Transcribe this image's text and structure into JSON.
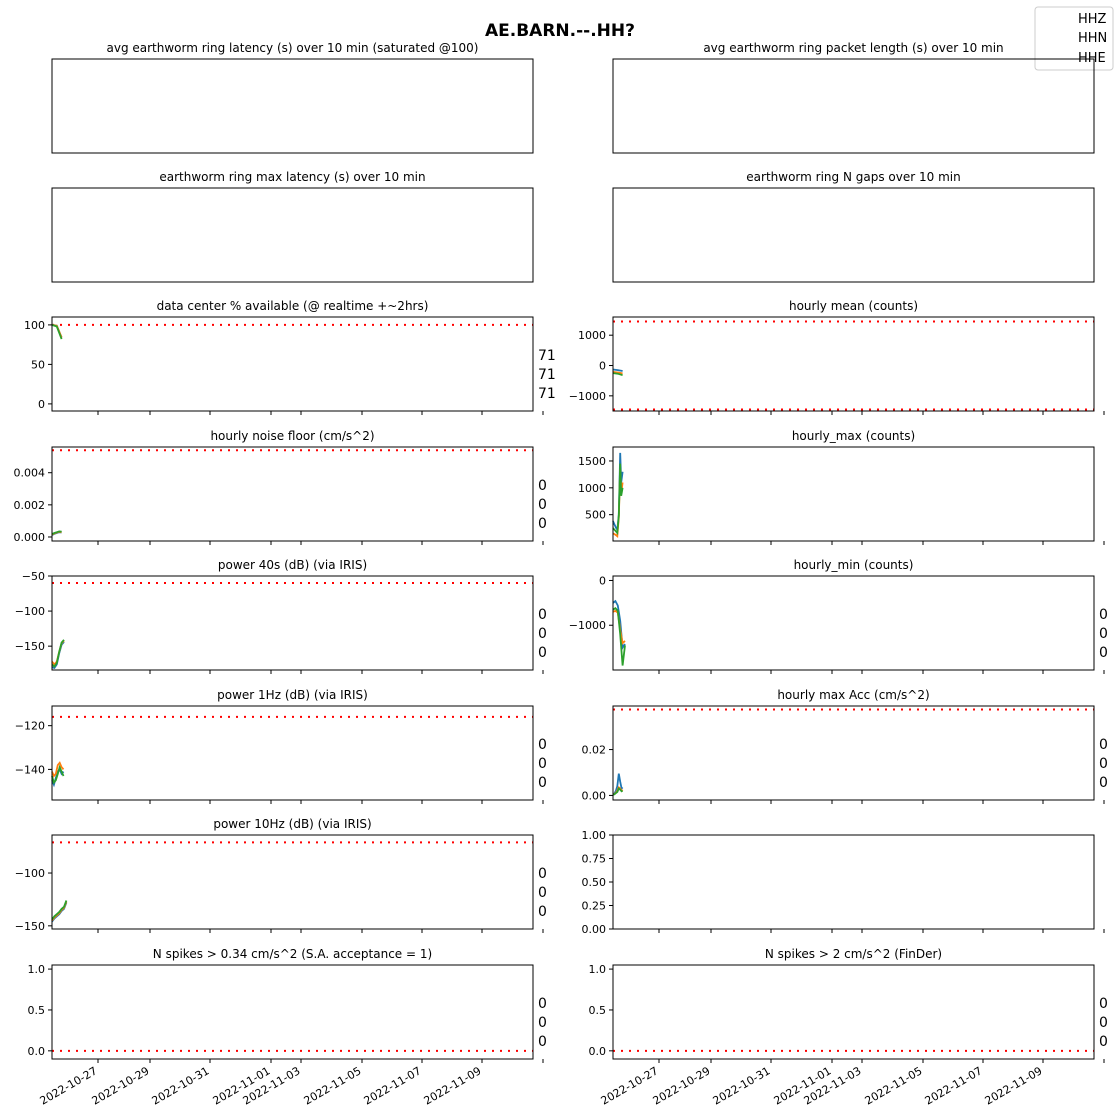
{
  "figure": {
    "title": "AE.BARN.--.HH?",
    "legend": [
      "HHZ",
      "HHN",
      "HHE"
    ],
    "colors": {
      "HHZ": "#1f77b4",
      "HHN": "#ff7f0e",
      "HHE": "#2ca02c",
      "threshold": "#ff0000"
    }
  },
  "chart_data": [
    {
      "id": "avg-latency",
      "type": "line",
      "title": "avg earthworm ring latency (s)   over 10 min (saturated @100)",
      "empty": true,
      "ticks": [],
      "badges": []
    },
    {
      "id": "avg-packet-length",
      "type": "line",
      "title": "avg earthworm ring packet length (s)   over 10 min",
      "empty": true,
      "ticks": [],
      "badges": []
    },
    {
      "id": "max-latency",
      "type": "line",
      "title": "earthworm ring max latency (s)   over 10 min",
      "empty": true,
      "ticks": [],
      "badges": []
    },
    {
      "id": "n-gaps",
      "type": "line",
      "title": "earthworm ring N gaps   over 10 min",
      "empty": true,
      "ticks": [],
      "badges": []
    },
    {
      "id": "data-available",
      "type": "line",
      "title": "data center % available (@ realtime +~2hrs)",
      "ylim": [
        -9,
        110
      ],
      "ticks": [
        {
          "v": 100,
          "l": "100"
        },
        {
          "v": 50,
          "l": "50"
        },
        {
          "v": 0,
          "l": "0"
        }
      ],
      "threshold": [
        100
      ],
      "series": [
        {
          "name": "HHZ",
          "x": [
            0,
            0.1,
            0.2
          ],
          "y": [
            100,
            99,
            84
          ]
        },
        {
          "name": "HHN",
          "x": [
            0,
            0.1,
            0.2
          ],
          "y": [
            100,
            99,
            84
          ]
        },
        {
          "name": "HHE",
          "x": [
            0,
            0.1,
            0.2
          ],
          "y": [
            100,
            98,
            82
          ]
        }
      ],
      "badges": [
        "71",
        "71",
        "71"
      ]
    },
    {
      "id": "hourly-mean",
      "type": "line",
      "title": "hourly mean (counts)",
      "ylim": [
        -1500,
        1600
      ],
      "ticks": [
        {
          "v": 1000,
          "l": "1000"
        },
        {
          "v": 0,
          "l": "0"
        },
        {
          "v": -1000,
          "l": "−1000"
        }
      ],
      "threshold": [
        1450,
        -1450
      ],
      "series": [
        {
          "name": "HHZ",
          "x": [
            0,
            0.1,
            0.2
          ],
          "y": [
            -130,
            -150,
            -180
          ]
        },
        {
          "name": "HHN",
          "x": [
            0,
            0.1,
            0.2
          ],
          "y": [
            -210,
            -230,
            -260
          ]
        },
        {
          "name": "HHE",
          "x": [
            0,
            0.1,
            0.2
          ],
          "y": [
            -250,
            -270,
            -320
          ]
        }
      ],
      "badges": []
    },
    {
      "id": "noise-floor",
      "type": "line",
      "title": "hourly noise floor (cm/s^2)",
      "ylim": [
        -0.00025,
        0.0056
      ],
      "ticks": [
        {
          "v": 0.004,
          "l": "0.004"
        },
        {
          "v": 0.002,
          "l": "0.002"
        },
        {
          "v": 0,
          "l": "0.000"
        }
      ],
      "threshold": [
        0.0054
      ],
      "series": [
        {
          "name": "HHZ",
          "x": [
            0,
            0.05,
            0.1,
            0.15,
            0.2
          ],
          "y": [
            0.00012,
            0.0002,
            0.00025,
            0.0003,
            0.00028
          ]
        },
        {
          "name": "HHN",
          "x": [
            0,
            0.05,
            0.1,
            0.15,
            0.2
          ],
          "y": [
            0.00015,
            0.00022,
            0.00028,
            0.00032,
            0.0003
          ]
        },
        {
          "name": "HHE",
          "x": [
            0,
            0.05,
            0.1,
            0.15,
            0.2
          ],
          "y": [
            0.00018,
            0.00025,
            0.0003,
            0.00035,
            0.00033
          ]
        }
      ],
      "badges": [
        "0",
        "0",
        "0"
      ]
    },
    {
      "id": "hourly-max",
      "type": "line",
      "title": "hourly_max (counts)",
      "ylim": [
        10,
        1760
      ],
      "ticks": [
        {
          "v": 1500,
          "l": "1500"
        },
        {
          "v": 1000,
          "l": "1000"
        },
        {
          "v": 500,
          "l": "500"
        }
      ],
      "threshold": [],
      "series": [
        {
          "name": "HHZ",
          "x": [
            0,
            0.03,
            0.06,
            0.09,
            0.12,
            0.15,
            0.17,
            0.2
          ],
          "y": [
            380,
            320,
            260,
            220,
            500,
            1650,
            1100,
            1300
          ]
        },
        {
          "name": "HHN",
          "x": [
            0,
            0.03,
            0.06,
            0.09,
            0.12,
            0.15,
            0.17,
            0.2
          ],
          "y": [
            150,
            140,
            120,
            100,
            450,
            1350,
            900,
            1100
          ]
        },
        {
          "name": "HHE",
          "x": [
            0,
            0.03,
            0.06,
            0.09,
            0.12,
            0.15,
            0.17,
            0.2
          ],
          "y": [
            250,
            220,
            190,
            160,
            480,
            1450,
            850,
            1000
          ]
        }
      ],
      "badges": []
    },
    {
      "id": "power-40s",
      "type": "line",
      "title": "power 40s (dB) (via IRIS)",
      "ylim": [
        -184,
        -50
      ],
      "ticks": [
        {
          "v": -50,
          "l": "−50"
        },
        {
          "v": -100,
          "l": "−100"
        },
        {
          "v": -150,
          "l": "−150"
        }
      ],
      "threshold": [
        -60
      ],
      "series": [
        {
          "name": "HHZ",
          "x": [
            0,
            0.05,
            0.1,
            0.15,
            0.2,
            0.25
          ],
          "y": [
            -180,
            -181,
            -176,
            -160,
            -148,
            -144
          ]
        },
        {
          "name": "HHN",
          "x": [
            0,
            0.05,
            0.1,
            0.15,
            0.2,
            0.25
          ],
          "y": [
            -172,
            -176,
            -172,
            -158,
            -146,
            -142
          ]
        },
        {
          "name": "HHE",
          "x": [
            0,
            0.05,
            0.1,
            0.15,
            0.2,
            0.25
          ],
          "y": [
            -176,
            -179,
            -174,
            -158,
            -145,
            -141
          ]
        }
      ],
      "badges": [
        "0",
        "0",
        "0"
      ]
    },
    {
      "id": "hourly-min",
      "type": "line",
      "title": "hourly_min (counts)",
      "ylim": [
        -2000,
        100
      ],
      "ticks": [
        {
          "v": 0,
          "l": "0"
        },
        {
          "v": -1000,
          "l": "−1000"
        }
      ],
      "threshold": [],
      "series": [
        {
          "name": "HHZ",
          "x": [
            0,
            0.05,
            0.1,
            0.15,
            0.2,
            0.25
          ],
          "y": [
            -500,
            -460,
            -560,
            -900,
            -1500,
            -1420
          ]
        },
        {
          "name": "HHN",
          "x": [
            0,
            0.05,
            0.1,
            0.15,
            0.2,
            0.25
          ],
          "y": [
            -700,
            -680,
            -720,
            -1100,
            -1400,
            -1350
          ]
        },
        {
          "name": "HHE",
          "x": [
            0,
            0.05,
            0.1,
            0.15,
            0.2,
            0.25
          ],
          "y": [
            -650,
            -620,
            -680,
            -1200,
            -1900,
            -1450
          ]
        }
      ],
      "badges": [
        "0",
        "0",
        "0"
      ]
    },
    {
      "id": "power-1hz",
      "type": "line",
      "title": "power 1Hz (dB) (via IRIS)",
      "ylim": [
        -154,
        -111
      ],
      "ticks": [
        {
          "v": -120,
          "l": "−120"
        },
        {
          "v": -140,
          "l": "−140"
        }
      ],
      "threshold": [
        -116
      ],
      "series": [
        {
          "name": "HHZ",
          "x": [
            0,
            0.04,
            0.08,
            0.12,
            0.16,
            0.2,
            0.24
          ],
          "y": [
            -145,
            -147,
            -144,
            -141,
            -140,
            -142,
            -141
          ]
        },
        {
          "name": "HHN",
          "x": [
            0,
            0.04,
            0.08,
            0.12,
            0.16,
            0.2,
            0.24
          ],
          "y": [
            -141,
            -143,
            -142,
            -138,
            -137,
            -139,
            -140
          ]
        },
        {
          "name": "HHE",
          "x": [
            0,
            0.04,
            0.08,
            0.12,
            0.16,
            0.2,
            0.24
          ],
          "y": [
            -143,
            -146,
            -145,
            -142,
            -139,
            -141,
            -143
          ]
        }
      ],
      "badges": [
        "0",
        "0",
        "0"
      ]
    },
    {
      "id": "hourly-max-acc",
      "type": "line",
      "title": "hourly max Acc (cm/s^2)",
      "ylim": [
        -0.002,
        0.039
      ],
      "ticks": [
        {
          "v": 0.02,
          "l": "0.02"
        },
        {
          "v": 0,
          "l": "0.00"
        }
      ],
      "threshold": [
        0.0375
      ],
      "series": [
        {
          "name": "HHZ",
          "x": [
            0,
            0.03,
            0.06,
            0.09,
            0.12,
            0.15,
            0.18,
            0.2
          ],
          "y": [
            0.0005,
            0.0008,
            0.002,
            0.004,
            0.0095,
            0.006,
            0.003,
            0.0035
          ]
        },
        {
          "name": "HHN",
          "x": [
            0,
            0.03,
            0.06,
            0.09,
            0.12,
            0.15,
            0.18,
            0.2
          ],
          "y": [
            0.0004,
            0.0006,
            0.0012,
            0.002,
            0.0035,
            0.003,
            0.002,
            0.0025
          ]
        },
        {
          "name": "HHE",
          "x": [
            0,
            0.03,
            0.06,
            0.09,
            0.12,
            0.15,
            0.18,
            0.2
          ],
          "y": [
            0.0003,
            0.0005,
            0.001,
            0.0015,
            0.003,
            0.0025,
            0.0018,
            0.002
          ]
        }
      ],
      "badges": [
        "0",
        "0",
        "0"
      ]
    },
    {
      "id": "power-10hz",
      "type": "line",
      "title": "power 10Hz (dB) (via IRIS)",
      "ylim": [
        -153,
        -64
      ],
      "ticks": [
        {
          "v": -100,
          "l": "−100"
        },
        {
          "v": -150,
          "l": "−150"
        }
      ],
      "threshold": [
        -71
      ],
      "series": [
        {
          "name": "HHZ",
          "x": [
            0,
            0.05,
            0.1,
            0.15,
            0.2,
            0.25,
            0.3
          ],
          "y": [
            -146,
            -143,
            -141,
            -139,
            -136,
            -134,
            -128
          ]
        },
        {
          "name": "HHN",
          "x": [
            0,
            0.05,
            0.1,
            0.15,
            0.2,
            0.25,
            0.3
          ],
          "y": [
            -145,
            -142,
            -140,
            -138,
            -135,
            -133,
            -127
          ]
        },
        {
          "name": "HHE",
          "x": [
            0,
            0.05,
            0.1,
            0.15,
            0.2,
            0.25,
            0.3
          ],
          "y": [
            -144,
            -141,
            -139,
            -137,
            -134,
            -132,
            -126
          ]
        }
      ],
      "badges": [
        "0",
        "0",
        "0"
      ]
    },
    {
      "id": "empty-panel",
      "type": "line",
      "title": "",
      "ylim": [
        0,
        1
      ],
      "ticks": [
        {
          "v": 1,
          "l": "1.00"
        },
        {
          "v": 0.75,
          "l": "0.75"
        },
        {
          "v": 0.5,
          "l": "0.50"
        },
        {
          "v": 0.25,
          "l": "0.25"
        },
        {
          "v": 0,
          "l": "0.00"
        }
      ],
      "threshold": [],
      "series": [],
      "badges": []
    },
    {
      "id": "spikes-sa",
      "type": "line",
      "title": "N spikes > 0.34 cm/s^2 (S.A. acceptance = 1)",
      "ylim": [
        -0.1,
        1.05
      ],
      "ticks": [
        {
          "v": 1,
          "l": "1.0"
        },
        {
          "v": 0.5,
          "l": "0.5"
        },
        {
          "v": 0,
          "l": "0.0"
        }
      ],
      "threshold": [
        0
      ],
      "series": [],
      "badges": [
        "0",
        "0",
        "0"
      ],
      "xlim": [
        0,
        16
      ],
      "xticks": [
        {
          "v": 1,
          "l": "2022-10-27"
        },
        {
          "v": 3,
          "l": "2022-10-29"
        },
        {
          "v": 5,
          "l": "2022-10-31"
        },
        {
          "v": 6,
          "l": "2022-11-01"
        },
        {
          "v": 8,
          "l": "2022-11-03"
        },
        {
          "v": 10,
          "l": "2022-11-05"
        },
        {
          "v": 12,
          "l": "2022-11-07"
        },
        {
          "v": 14,
          "l": "2022-11-09"
        }
      ]
    },
    {
      "id": "spikes-finder",
      "type": "line",
      "title": "N spikes > 2 cm/s^2 (FinDer)",
      "ylim": [
        -0.1,
        1.05
      ],
      "ticks": [
        {
          "v": 1,
          "l": "1.0"
        },
        {
          "v": 0.5,
          "l": "0.5"
        },
        {
          "v": 0,
          "l": "0.0"
        }
      ],
      "threshold": [
        0
      ],
      "series": [],
      "badges": [
        "0",
        "0",
        "0"
      ],
      "xlim": [
        0,
        16
      ],
      "xticks": [
        {
          "v": 1,
          "l": "2022-10-27"
        },
        {
          "v": 3,
          "l": "2022-10-29"
        },
        {
          "v": 5,
          "l": "2022-10-31"
        },
        {
          "v": 6,
          "l": "2022-11-01"
        },
        {
          "v": 8,
          "l": "2022-11-03"
        },
        {
          "v": 10,
          "l": "2022-11-05"
        },
        {
          "v": 12,
          "l": "2022-11-07"
        },
        {
          "v": 14,
          "l": "2022-11-09"
        }
      ]
    }
  ]
}
